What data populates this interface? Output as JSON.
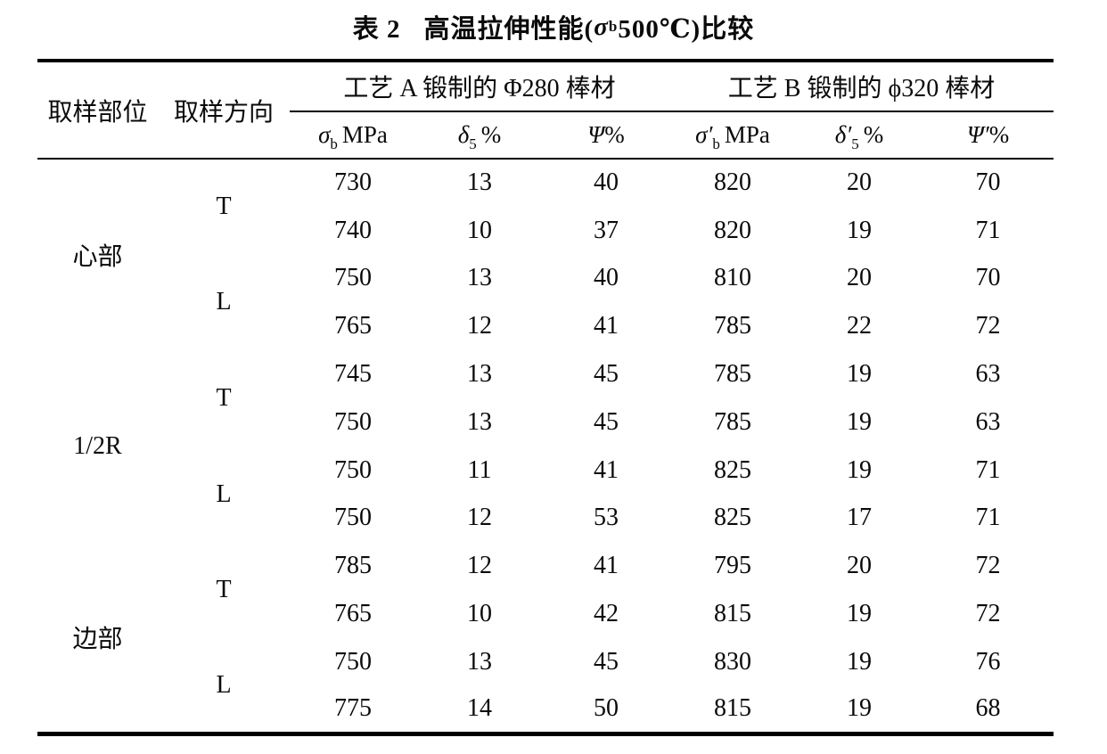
{
  "title": {
    "table_label": "表 2",
    "main_prefix": "高温拉伸性能(",
    "sigma": "σ",
    "sigma_sub": "b",
    "main_suffix": "500℃)比较"
  },
  "table": {
    "header": {
      "col_part": "取样部位",
      "col_dir": "取样方向",
      "groups": [
        {
          "title": "工艺 A 锻制的 Φ280 棒材"
        },
        {
          "title": "工艺 B 锻制的 ϕ320 棒材"
        }
      ],
      "subcolumns": [
        {
          "base": "σ",
          "sub": "b",
          "unit": "MPa"
        },
        {
          "base": "δ",
          "sub": "5",
          "unit": "%"
        },
        {
          "base": "Ψ",
          "sub": "",
          "unit": "%"
        },
        {
          "base": "σ′",
          "sub": "b",
          "unit": "MPa"
        },
        {
          "base": "δ′",
          "sub": "5",
          "unit": "%"
        },
        {
          "base": "Ψ′",
          "sub": "",
          "unit": "%"
        }
      ]
    },
    "sections": [
      {
        "part": "心部",
        "dirs": [
          {
            "dir": "T",
            "rows": [
              [
                730,
                13,
                40,
                820,
                20,
                70
              ],
              [
                740,
                10,
                37,
                820,
                19,
                71
              ]
            ]
          },
          {
            "dir": "L",
            "rows": [
              [
                750,
                13,
                40,
                810,
                20,
                70
              ],
              [
                765,
                12,
                41,
                785,
                22,
                72
              ]
            ]
          }
        ]
      },
      {
        "part": "1/2R",
        "dirs": [
          {
            "dir": "T",
            "rows": [
              [
                745,
                13,
                45,
                785,
                19,
                63
              ],
              [
                750,
                13,
                45,
                785,
                19,
                63
              ]
            ]
          },
          {
            "dir": "L",
            "rows": [
              [
                750,
                11,
                41,
                825,
                19,
                71
              ],
              [
                750,
                12,
                53,
                825,
                17,
                71
              ]
            ]
          }
        ]
      },
      {
        "part": "边部",
        "dirs": [
          {
            "dir": "T",
            "rows": [
              [
                785,
                12,
                41,
                795,
                20,
                72
              ],
              [
                765,
                10,
                42,
                815,
                19,
                72
              ]
            ]
          },
          {
            "dir": "L",
            "rows": [
              [
                750,
                13,
                45,
                830,
                19,
                76
              ],
              [
                775,
                14,
                50,
                815,
                19,
                68
              ]
            ]
          }
        ]
      }
    ]
  }
}
